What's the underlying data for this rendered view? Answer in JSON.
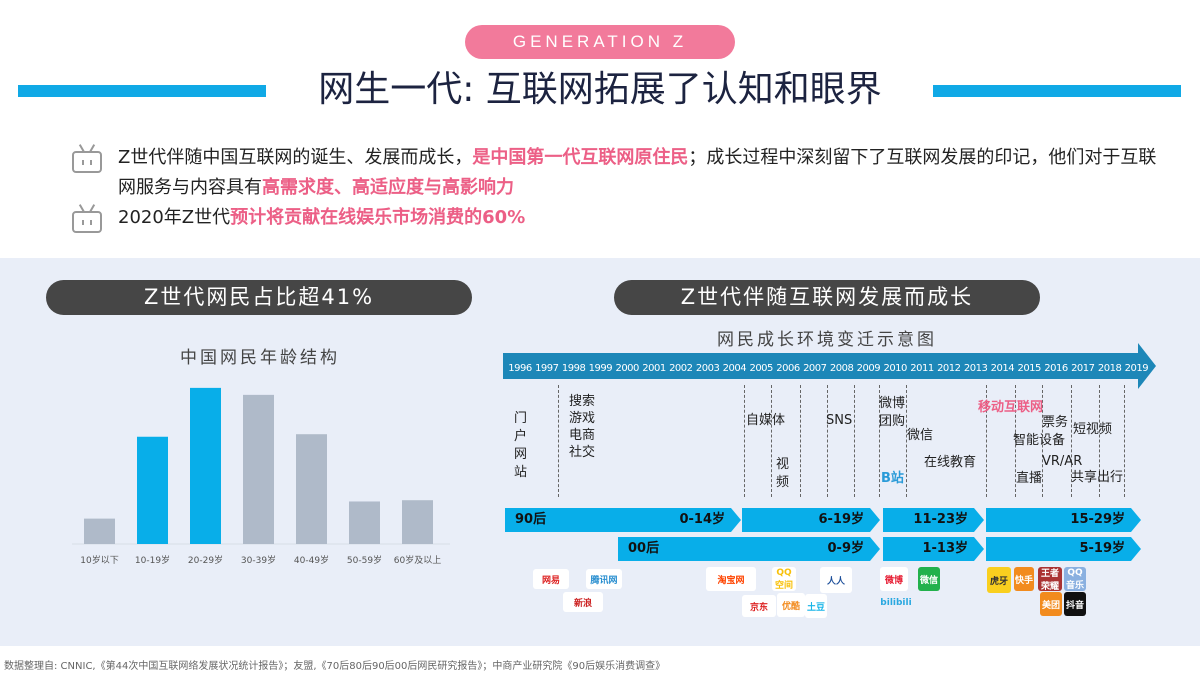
{
  "header": {
    "badge": "GENERATION Z",
    "title": "网生一代: 互联网拓展了认知和眼界"
  },
  "bullets": [
    {
      "parts": [
        "Z世代伴随中国互联网的诞生、发展而成长，",
        "是中国第一代互联网原住民",
        "；成长过程中深刻留下了互联网发展的印记，他们对于互联网服务与内容具有",
        "高需求度、高适应度与高影响力"
      ]
    },
    {
      "parts": [
        "2020年Z世代",
        "预计将贡献在线娱乐市场消费的60%"
      ]
    }
  ],
  "colors": {
    "accent_blue": "#10a9e6",
    "accent_pink": "#ec5f86",
    "highlight_bar": "#08aee9",
    "gray_bar": "#afbac9",
    "pill": "#464646",
    "timeline_axis": "#1d87b8"
  },
  "left": {
    "pill": "Z世代网民占比超41%"
  },
  "chart_data": {
    "type": "bar",
    "title": "中国网民年龄结构",
    "xlabel": "",
    "ylabel": "",
    "categories": [
      "10岁以下",
      "10-19岁",
      "20-29岁",
      "30-39岁",
      "40-49岁",
      "50-59岁",
      "60岁及以上"
    ],
    "values": [
      4.0,
      16.9,
      24.6,
      23.5,
      17.3,
      6.7,
      6.9
    ],
    "highlighted": [
      false,
      true,
      true,
      false,
      false,
      false,
      false
    ],
    "ylim": [
      0,
      26
    ],
    "grid": false
  },
  "right": {
    "pill": "Z世代伴随互联网发展而成长",
    "subtitle": "网民成长环境变迁示意图",
    "years": [
      "1996",
      "1997",
      "1998",
      "1999",
      "2000",
      "2001",
      "2002",
      "2003",
      "2004",
      "2005",
      "2006",
      "2007",
      "2008",
      "2009",
      "2010",
      "2011",
      "2012",
      "2013",
      "2014",
      "2015",
      "2016",
      "2017",
      "2018",
      "2019"
    ],
    "events": [
      "门户网站",
      "搜索",
      "游戏",
      "电商",
      "社交",
      "自媒体",
      "视频",
      "SNS",
      "微博",
      "团购",
      "微信",
      "B站",
      "在线教育",
      "移动互联网",
      "票务",
      "短视频",
      "智能设备",
      "VR/AR",
      "直播",
      "共享出行"
    ],
    "gen90": {
      "label": "90后",
      "ages": [
        "0-14岁",
        "6-19岁",
        "11-23岁",
        "15-29岁"
      ]
    },
    "gen00": {
      "label": "00后",
      "ages": [
        "0-9岁",
        "1-13岁",
        "5-19岁"
      ]
    },
    "logos": [
      "网易",
      "腾讯网",
      "新浪",
      "淘宝网",
      "QQ空间",
      "人人",
      "京东",
      "优酷",
      "土豆",
      "微博",
      "微信",
      "bilibili",
      "虎牙",
      "快手",
      "王者荣耀",
      "QQ音乐",
      "美团",
      "抖音"
    ]
  },
  "footer": "数据整理自: CNNIC,《第44次中国互联网络发展状况统计报告》；友盟,《70后80后90后00后网民研究报告》；中商产业研究院《90后娱乐消费调查》"
}
